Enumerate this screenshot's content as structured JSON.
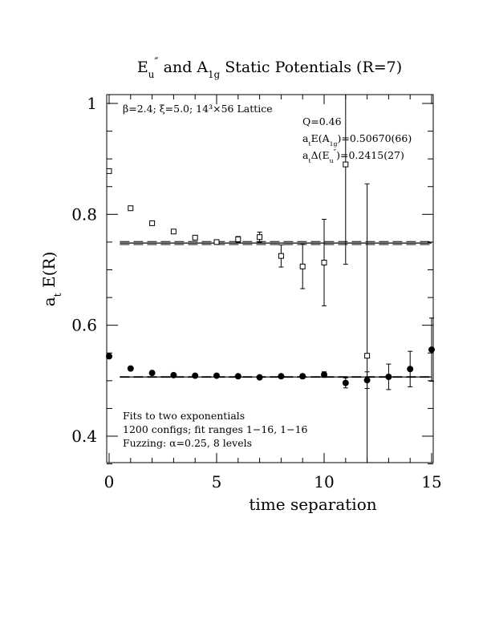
{
  "chart_data": {
    "type": "scatter",
    "title": {
      "parts": [
        {
          "t": "E"
        },
        {
          "t": "u",
          "sub": true
        },
        {
          "t": "″",
          "sup": true
        },
        {
          "t": "  and A"
        },
        {
          "t": "1g",
          "sub": true
        },
        {
          "t": " Static Potentials (R=7)"
        }
      ]
    },
    "xlabel": "time separation",
    "ylabel": {
      "parts": [
        {
          "t": "a"
        },
        {
          "t": "t",
          "sub": true
        },
        {
          "t": " E(R)"
        }
      ]
    },
    "xlim": [
      0,
      15
    ],
    "ylim": [
      0.35,
      1.015
    ],
    "xticks": [
      0,
      5,
      10,
      15
    ],
    "xtick_labels": [
      "0",
      "5",
      "10",
      "15"
    ],
    "yticks": [
      0.4,
      0.6,
      0.8,
      1.0
    ],
    "ytick_labels": [
      "0.4",
      "0.6",
      "0.8",
      "1"
    ],
    "annotations": {
      "top_left": {
        "parts": [
          {
            "t": "β=2.4; ξ=5.0; 14³×56 Lattice"
          }
        ]
      },
      "top_right": [
        {
          "parts": [
            {
              "t": "Q=0.46"
            }
          ]
        },
        {
          "parts": [
            {
              "t": "a"
            },
            {
              "t": "t",
              "sub": true
            },
            {
              "t": "E(A"
            },
            {
              "t": "1g",
              "sub": true
            },
            {
              "t": ")=0.50670(66)"
            }
          ]
        },
        {
          "parts": [
            {
              "t": "a"
            },
            {
              "t": "t",
              "sub": true
            },
            {
              "t": "Δ(E"
            },
            {
              "t": "u",
              "sub": true
            },
            {
              "t": "″",
              "sup": true
            },
            {
              "t": ")=0.2415(27)"
            }
          ]
        }
      ],
      "bottom_left": [
        {
          "parts": [
            {
              "t": "Fits to two exponentials"
            }
          ]
        },
        {
          "parts": [
            {
              "t": "1200 configs; fit ranges 1−16, 1−16"
            }
          ]
        },
        {
          "parts": [
            {
              "t": "Fuzzing: α=0.25, 8 levels"
            }
          ]
        }
      ]
    },
    "series": [
      {
        "marker": "open-square",
        "x": [
          0,
          1,
          2,
          3,
          4,
          5,
          6,
          7,
          8,
          9,
          10,
          11,
          12
        ],
        "y": [
          0.878,
          0.811,
          0.784,
          0.769,
          0.758,
          0.75,
          0.755,
          0.759,
          0.725,
          0.706,
          0.713,
          0.89,
          0.545
        ],
        "err": [
          0.002,
          0.002,
          0.002,
          0.003,
          0.004,
          0.004,
          0.005,
          0.009,
          0.02,
          0.04,
          0.078,
          0.18,
          0.31
        ]
      },
      {
        "marker": "filled-circle",
        "x": [
          0,
          1,
          2,
          3,
          4,
          5,
          6,
          7,
          8,
          9,
          10,
          11,
          12,
          13,
          14,
          15
        ],
        "y": [
          0.544,
          0.522,
          0.514,
          0.51,
          0.509,
          0.509,
          0.508,
          0.506,
          0.508,
          0.508,
          0.511,
          0.496,
          0.501,
          0.507,
          0.521,
          0.556
        ],
        "err": [
          0.002,
          0.002,
          0.002,
          0.002,
          0.002,
          0.002,
          0.002,
          0.003,
          0.003,
          0.004,
          0.005,
          0.009,
          0.015,
          0.023,
          0.032,
          0.057
        ]
      }
    ],
    "fit_bands": [
      {
        "x_range": [
          0.5,
          15
        ],
        "center": 0.7482,
        "half_width": 0.0027
      },
      {
        "x_range": [
          0.5,
          15
        ],
        "center": 0.5067,
        "half_width": 0.0007
      }
    ]
  }
}
